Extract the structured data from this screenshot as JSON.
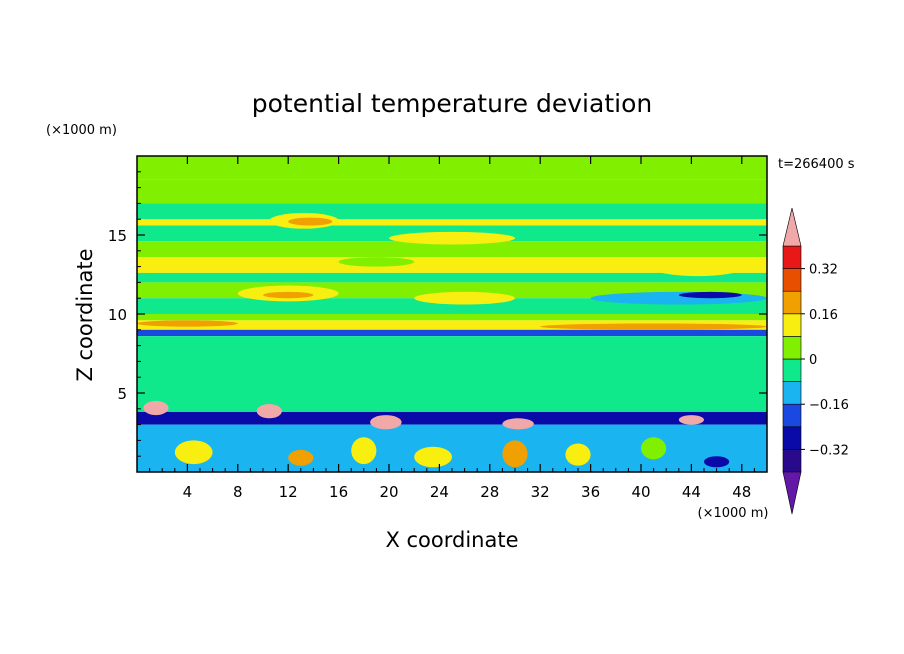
{
  "chart_data": {
    "type": "heatmap",
    "title": "potential temperature deviation",
    "xlabel": "X coordinate",
    "ylabel": "Z coordinate",
    "x_unit": "(×1000 m)",
    "y_unit": "(×1000 m)",
    "time_label": "t=266400 s",
    "xlim": [
      0,
      50
    ],
    "ylim": [
      0,
      20
    ],
    "x_ticks": [
      4,
      8,
      12,
      16,
      20,
      24,
      28,
      32,
      36,
      40,
      44,
      48
    ],
    "y_ticks": [
      5,
      10,
      15
    ],
    "colorbar": {
      "levels": [
        -0.4,
        -0.32,
        -0.24,
        -0.16,
        -0.08,
        0,
        0.08,
        0.16,
        0.24,
        0.32,
        0.4
      ],
      "colors": [
        "#2a0a8c",
        "#0a0aa8",
        "#1a48e0",
        "#1ab4f0",
        "#10e88c",
        "#80f000",
        "#f8ee10",
        "#f0a000",
        "#e85000",
        "#e81818"
      ],
      "under_color": "#6418a8",
      "over_color": "#f0a8a8",
      "labels": [
        "0.32",
        "0.16",
        "0",
        "−0.16",
        "−0.32"
      ],
      "label_values": [
        0.32,
        0.16,
        0,
        -0.16,
        -0.32
      ]
    },
    "bands": [
      {
        "z": [
          18.5,
          20
        ],
        "value": 0.02
      },
      {
        "z": [
          17.0,
          18.5
        ],
        "value": 0.03
      },
      {
        "z": [
          16.0,
          17.0
        ],
        "value": -0.06
      },
      {
        "z": [
          15.6,
          16.0
        ],
        "value": 0.1
      },
      {
        "z": [
          14.6,
          15.6
        ],
        "value": -0.03
      },
      {
        "z": [
          13.6,
          14.6
        ],
        "value": 0.02
      },
      {
        "z": [
          12.6,
          13.6
        ],
        "value": 0.11
      },
      {
        "z": [
          12.0,
          12.6
        ],
        "value": -0.03
      },
      {
        "z": [
          11.0,
          12.0
        ],
        "value": 0.03
      },
      {
        "z": [
          10.0,
          11.0
        ],
        "value": -0.04
      },
      {
        "z": [
          9.6,
          10.0
        ],
        "value": 0.04
      },
      {
        "z": [
          9.0,
          9.6
        ],
        "value": 0.12
      },
      {
        "z": [
          8.6,
          9.0
        ],
        "value": -0.2
      },
      {
        "z": [
          5.0,
          8.6
        ],
        "value": -0.02
      },
      {
        "z": [
          3.8,
          5.0
        ],
        "value": -0.03
      },
      {
        "z": [
          3.0,
          3.8
        ],
        "value": -0.28
      },
      {
        "z": [
          0,
          3.0
        ],
        "value": -0.1
      }
    ],
    "features": [
      {
        "x": [
          10.5,
          16
        ],
        "z": [
          15.4,
          16.4
        ],
        "value": 0.12
      },
      {
        "x": [
          12,
          15.5
        ],
        "z": [
          15.6,
          16.1
        ],
        "value": 0.2
      },
      {
        "x": [
          20,
          30
        ],
        "z": [
          14.4,
          15.2
        ],
        "value": 0.1
      },
      {
        "x": [
          0,
          2
        ],
        "z": [
          12.6,
          13.4
        ],
        "value": 0.1
      },
      {
        "x": [
          8,
          16
        ],
        "z": [
          10.8,
          11.8
        ],
        "value": 0.11
      },
      {
        "x": [
          10,
          14
        ],
        "z": [
          11.0,
          11.4
        ],
        "value": 0.18
      },
      {
        "x": [
          22,
          30
        ],
        "z": [
          10.6,
          11.4
        ],
        "value": 0.1
      },
      {
        "x": [
          41,
          48
        ],
        "z": [
          12.4,
          13.4
        ],
        "value": 0.09
      },
      {
        "x": [
          36,
          50
        ],
        "z": [
          10.6,
          11.4
        ],
        "value": -0.09
      },
      {
        "x": [
          43,
          48
        ],
        "z": [
          11.0,
          11.4
        ],
        "value": -0.25
      },
      {
        "x": [
          16,
          22
        ],
        "z": [
          13.0,
          13.6
        ],
        "value": 0.02
      },
      {
        "x": [
          0,
          8
        ],
        "z": [
          9.2,
          9.6
        ],
        "value": 0.22
      },
      {
        "x": [
          32,
          50
        ],
        "z": [
          9.0,
          9.4
        ],
        "value": 0.22
      },
      {
        "x": [
          0.5,
          2.5
        ],
        "z": [
          3.6,
          4.5
        ],
        "value": 0.42
      },
      {
        "x": [
          9.5,
          11.5
        ],
        "z": [
          3.4,
          4.3
        ],
        "value": 0.42
      },
      {
        "x": [
          18.5,
          21
        ],
        "z": [
          2.7,
          3.6
        ],
        "value": 0.42
      },
      {
        "x": [
          29,
          31.5
        ],
        "z": [
          2.7,
          3.4
        ],
        "value": 0.42
      },
      {
        "x": [
          43,
          45
        ],
        "z": [
          3.0,
          3.6
        ],
        "value": 0.42
      },
      {
        "x": [
          3,
          6
        ],
        "z": [
          0.5,
          2.0
        ],
        "value": 0.12
      },
      {
        "x": [
          12,
          14
        ],
        "z": [
          0.4,
          1.4
        ],
        "value": 0.2
      },
      {
        "x": [
          17,
          19
        ],
        "z": [
          0.5,
          2.2
        ],
        "value": 0.15
      },
      {
        "x": [
          22,
          25
        ],
        "z": [
          0.3,
          1.6
        ],
        "value": 0.1
      },
      {
        "x": [
          29,
          31
        ],
        "z": [
          0.3,
          2.0
        ],
        "value": 0.22
      },
      {
        "x": [
          34,
          36
        ],
        "z": [
          0.4,
          1.8
        ],
        "value": 0.14
      },
      {
        "x": [
          45,
          47
        ],
        "z": [
          0.3,
          1.0
        ],
        "value": -0.25
      },
      {
        "x": [
          40,
          42
        ],
        "z": [
          0.8,
          2.2
        ],
        "value": 0.04
      }
    ]
  }
}
